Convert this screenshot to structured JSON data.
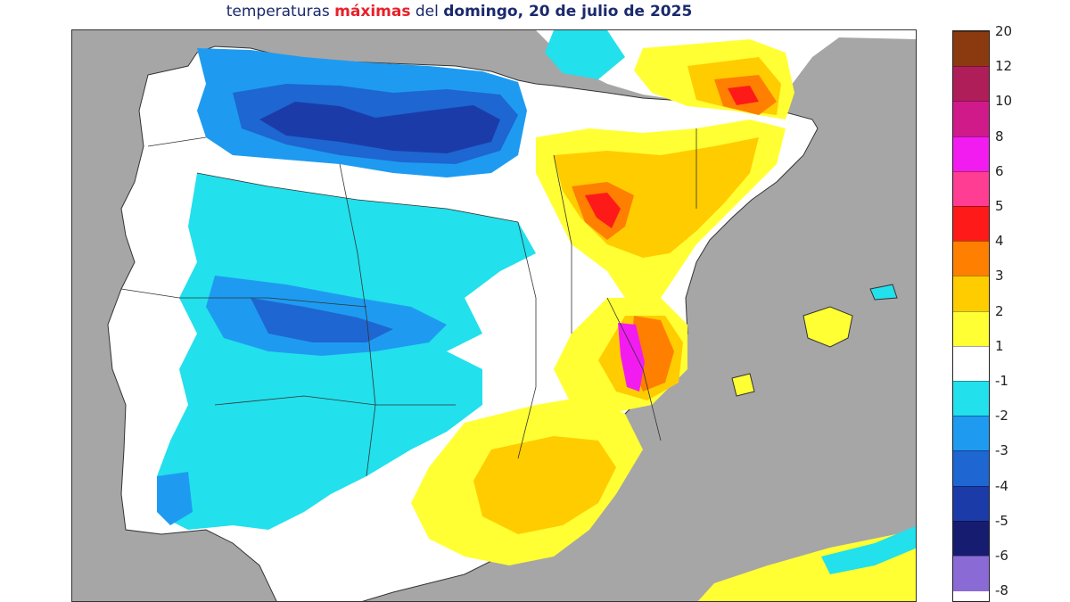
{
  "title": {
    "prefix": "temperaturas ",
    "highlight": "máximas",
    "middle": " del ",
    "bold": "domingo, 20 de julio de 2025"
  },
  "colors": {
    "sea": "#a6a6a6",
    "land_neutral": "#ffffff",
    "border": "#333333"
  },
  "legend": {
    "ticks": [
      "20",
      "12",
      "10",
      "8",
      "6",
      "5",
      "4",
      "3",
      "2",
      "1",
      "-1",
      "-2",
      "-3",
      "-4",
      "-5",
      "-6",
      "-8"
    ],
    "bins": [
      {
        "color": "#8b3a10"
      },
      {
        "color": "#b01e5a"
      },
      {
        "color": "#d01a8a"
      },
      {
        "color": "#f21cf0"
      },
      {
        "color": "#ff3d92"
      },
      {
        "color": "#ff1a1a"
      },
      {
        "color": "#ff7f00"
      },
      {
        "color": "#ffcc00"
      },
      {
        "color": "#ffff33"
      },
      {
        "color": "#ffffff"
      },
      {
        "color": "#22e0ec"
      },
      {
        "color": "#1e9bf0"
      },
      {
        "color": "#1e66d2"
      },
      {
        "color": "#1b3ca8"
      },
      {
        "color": "#161d70"
      },
      {
        "color": "#8a6bd6"
      }
    ]
  }
}
